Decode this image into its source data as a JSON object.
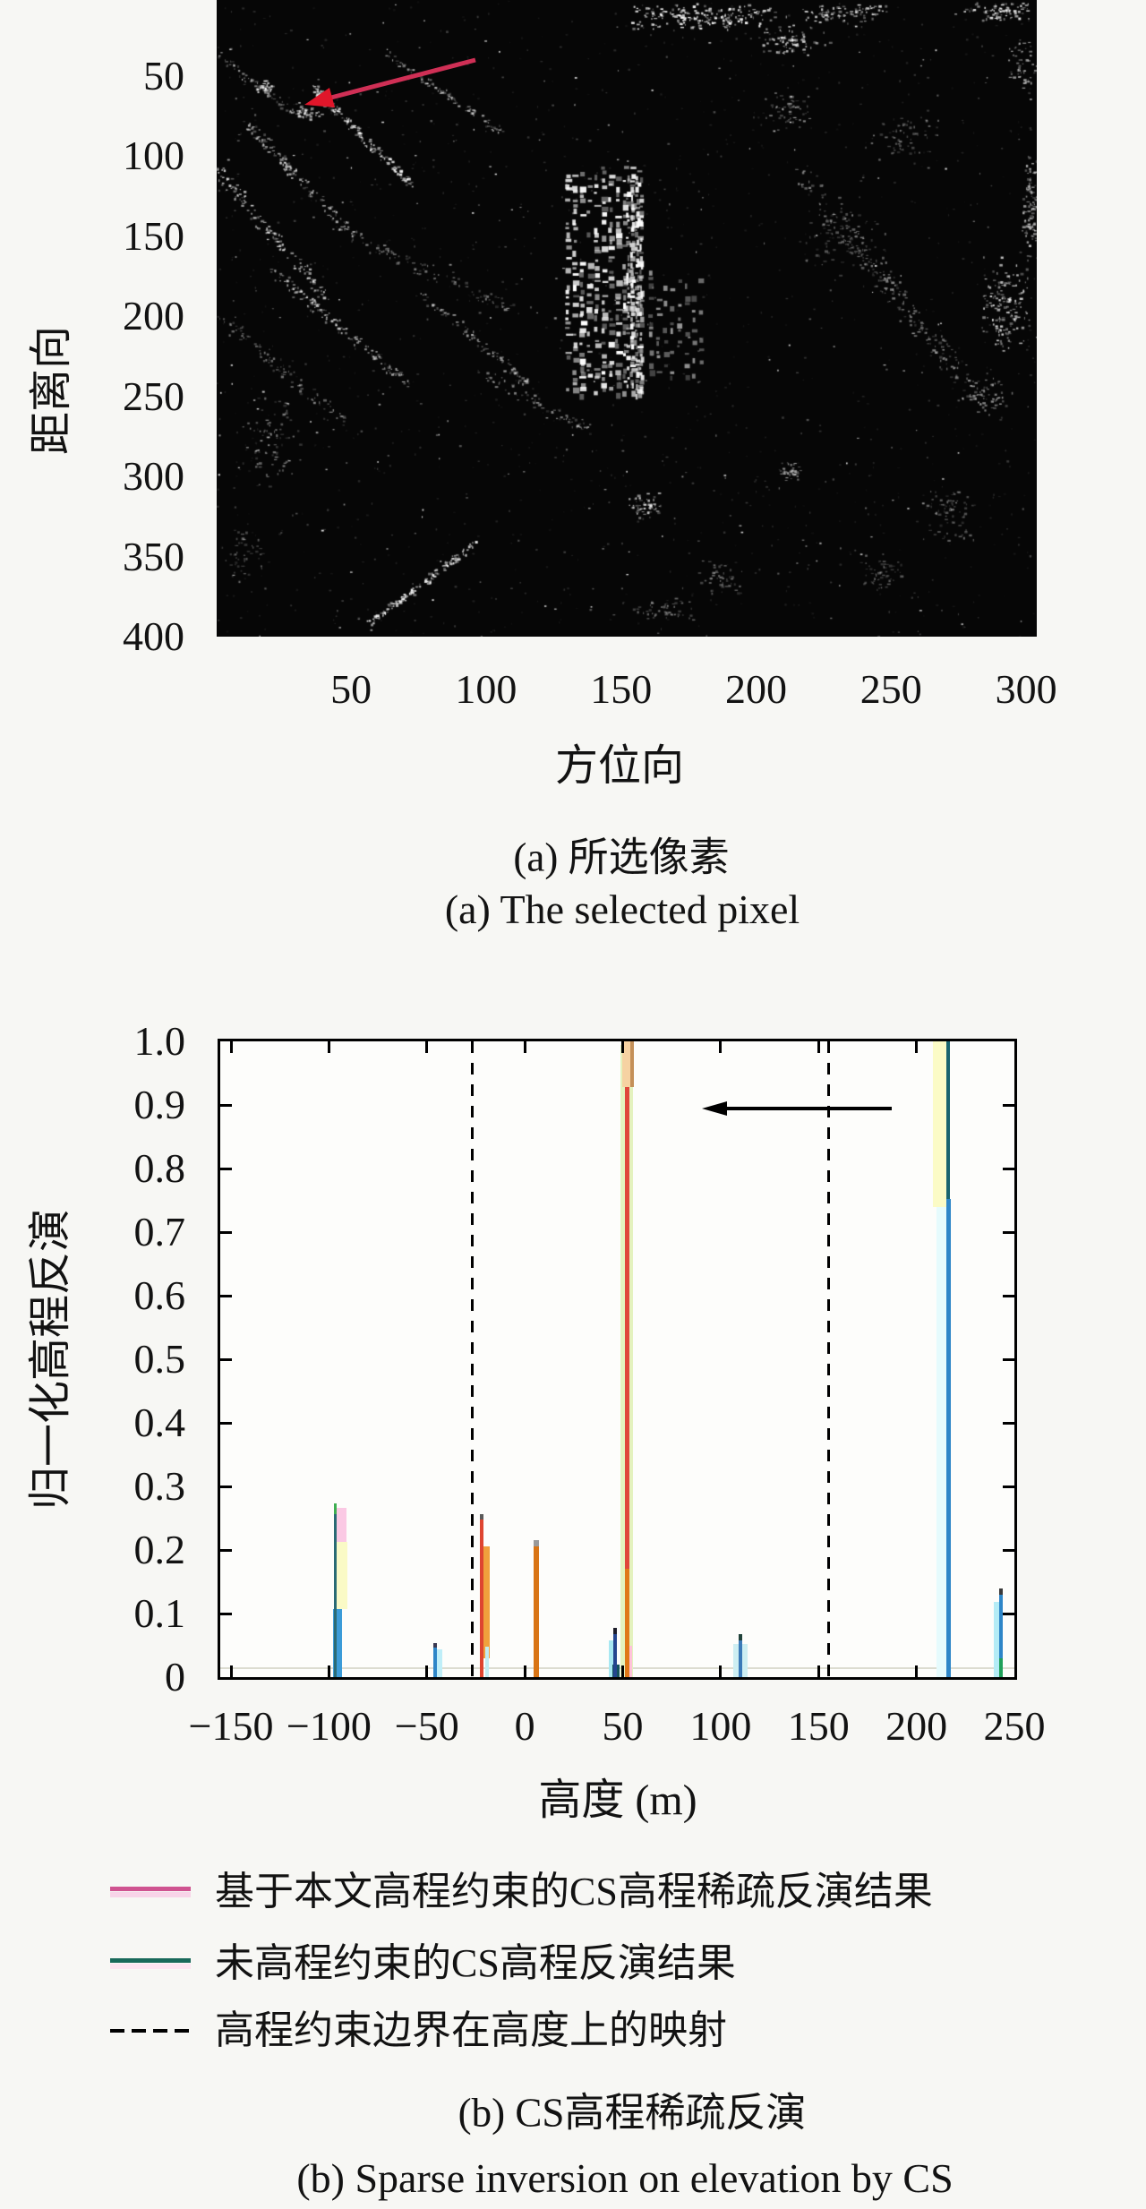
{
  "page": {
    "background": "#f7f7f4",
    "plot_background": "#fdfdfb"
  },
  "figure_a": {
    "description": "SAR amplitude image (black background, white speckle) with red arrow marking the selected pixel",
    "y_axis": {
      "title": "距离向",
      "ticks": [
        "50",
        "100",
        "150",
        "200",
        "250",
        "300",
        "350",
        "400"
      ]
    },
    "x_axis": {
      "title": "方位向",
      "ticks": [
        "50",
        "100",
        "150",
        "200",
        "250",
        "300"
      ]
    },
    "caption_zh": "(a) 所选像素",
    "caption_en": "(a) The selected pixel",
    "annotation": {
      "type": "arrow",
      "color": "#cf2f55",
      "head_color": "#e0162a"
    }
  },
  "figure_b": {
    "y_axis": {
      "title": "归一化高程反演",
      "ticks": [
        "0",
        "0.1",
        "0.2",
        "0.3",
        "0.4",
        "0.5",
        "0.6",
        "0.7",
        "0.8",
        "0.9",
        "1.0"
      ]
    },
    "x_axis": {
      "title": "高度 (m)",
      "ticks": [
        "−150",
        "−100",
        "−50",
        "0",
        "50",
        "100",
        "150",
        "200",
        "250"
      ]
    },
    "legend": [
      {
        "sample": "line",
        "color": "#cf5390",
        "glow": "#f8d4e8",
        "label": "基于本文高程约束的CS高程稀疏反演结果"
      },
      {
        "sample": "line",
        "color": "#19695a",
        "glow": "#fce4f0",
        "label": "未高程约束的CS高程反演结果"
      },
      {
        "sample": "dashed",
        "color": "#111111",
        "glow": "",
        "label": "高程约束边界在高度上的映射"
      }
    ],
    "caption_zh": "(b) CS高程稀疏反演",
    "caption_en": "(b) Sparse inversion on elevation by CS"
  },
  "chart_data": {
    "type": "line",
    "subtype": "stem-spikes",
    "title": "",
    "xlabel": "高度 (m)",
    "ylabel": "归一化高程反演",
    "xlim": [
      -155,
      250
    ],
    "ylim": [
      0,
      1
    ],
    "x_ticks": [
      -150,
      -100,
      -50,
      0,
      50,
      100,
      150,
      200,
      250
    ],
    "y_ticks": [
      0,
      0.1,
      0.2,
      0.3,
      0.4,
      0.5,
      0.6,
      0.7,
      0.8,
      0.9,
      1.0
    ],
    "grid": false,
    "legend_position": "below",
    "series": [
      {
        "name": "基于本文高程约束的CS高程稀疏反演结果",
        "color": "#cf5390",
        "points": [
          {
            "x": -22,
            "y": 0.255
          },
          {
            "x": 6,
            "y": 0.215
          },
          {
            "x": 52,
            "y": 1.0
          }
        ]
      },
      {
        "name": "未高程约束的CS高程反演结果",
        "color": "#19695a",
        "points": [
          {
            "x": -97,
            "y": 0.27
          },
          {
            "x": -46,
            "y": 0.05
          },
          {
            "x": 46,
            "y": 0.075
          },
          {
            "x": 110,
            "y": 0.065
          },
          {
            "x": 216,
            "y": 1.0
          },
          {
            "x": 243,
            "y": 0.14
          }
        ]
      }
    ],
    "boundary_lines": {
      "name": "高程约束边界在高度上的映射",
      "x": [
        -27,
        155
      ],
      "style": "dashed",
      "color": "#000000"
    },
    "annotation_arrow": {
      "y": 0.9,
      "from_x": 189,
      "to_x": 92,
      "color": "#000000"
    },
    "baseline_noise_color": "#dcdcd0",
    "spikes": [
      {
        "x": -97,
        "segments": [
          {
            "dx": -2,
            "w": 10,
            "y0": 0,
            "y1": 0.107,
            "c": "#3b9bd8"
          },
          {
            "dx": 1,
            "w": 13,
            "y0": 0.107,
            "y1": 0.212,
            "c": "#fafac6"
          },
          {
            "dx": 1,
            "w": 12,
            "y0": 0.212,
            "y1": 0.266,
            "c": "#fbc9e4"
          },
          {
            "dx": -1,
            "w": 3,
            "y0": 0,
            "y1": 0.27,
            "c": "#2a6b75"
          },
          {
            "dx": -1,
            "w": 3,
            "y0": 0.256,
            "y1": 0.273,
            "c": "#3fae52"
          }
        ]
      },
      {
        "x": -46,
        "segments": [
          {
            "dx": 2,
            "w": 6,
            "y0": 0,
            "y1": 0.043,
            "c": "#bfeef8"
          },
          {
            "dx": -2,
            "w": 4,
            "y0": 0,
            "y1": 0.05,
            "c": "#2e86c8"
          },
          {
            "dx": -2,
            "w": 4,
            "y0": 0.046,
            "y1": 0.053,
            "c": "#3a3a52"
          }
        ]
      },
      {
        "x": -22,
        "segments": [
          {
            "dx": 2,
            "w": 7,
            "y0": 0.03,
            "y1": 0.205,
            "c": "#f0a03c"
          },
          {
            "dx": 4,
            "w": 4,
            "y0": 0,
            "y1": 0.048,
            "c": "#c2ecf2"
          },
          {
            "dx": -2,
            "w": 4,
            "y0": 0,
            "y1": 0.252,
            "c": "#de4530"
          },
          {
            "dx": -2,
            "w": 4,
            "y0": 0.248,
            "y1": 0.257,
            "c": "#5a5a5a"
          }
        ]
      },
      {
        "x": 6,
        "segments": [
          {
            "dx": -3,
            "w": 6,
            "y0": 0,
            "y1": 0.211,
            "c": "#d97414"
          },
          {
            "dx": -3,
            "w": 6,
            "y0": 0.205,
            "y1": 0.216,
            "c": "#9a9a9a"
          }
        ]
      },
      {
        "x": 46,
        "segments": [
          {
            "dx": -7,
            "w": 5,
            "y0": 0,
            "y1": 0.058,
            "c": "#a8e8f2"
          },
          {
            "dx": -3,
            "w": 8,
            "y0": 0,
            "y1": 0.02,
            "c": "#14525c"
          },
          {
            "dx": -2,
            "w": 4,
            "y0": 0,
            "y1": 0.071,
            "c": "#24458f"
          },
          {
            "dx": -2,
            "w": 4,
            "y0": 0.068,
            "y1": 0.078,
            "c": "#1d1d2a"
          }
        ]
      },
      {
        "x": 52,
        "segments": [
          {
            "dx": -7,
            "w": 14,
            "y0": 0,
            "y1": 0.995,
            "c": "#e4f2be"
          },
          {
            "dx": -2,
            "w": 5,
            "y0": 0.17,
            "y1": 0.998,
            "c": "#e0453a"
          },
          {
            "dx": -2,
            "w": 5,
            "y0": 0,
            "y1": 0.17,
            "c": "#e07818"
          },
          {
            "dx": 3,
            "w": 3,
            "y0": 0,
            "y1": 0.05,
            "c": "#ffc2da"
          },
          {
            "dx": -5,
            "w": 9,
            "y0": 0.928,
            "y1": 1.0,
            "c": "#f6d2a2"
          },
          {
            "dx": 4,
            "w": 4,
            "y0": 0.928,
            "y1": 1.0,
            "c": "#c49058"
          }
        ]
      },
      {
        "x": 110,
        "segments": [
          {
            "dx": -8,
            "w": 16,
            "y0": 0,
            "y1": 0.052,
            "c": "#cdeef2"
          },
          {
            "dx": -2,
            "w": 4,
            "y0": 0,
            "y1": 0.062,
            "c": "#3a7ab8"
          },
          {
            "dx": -2,
            "w": 4,
            "y0": 0.058,
            "y1": 0.067,
            "c": "#20423a"
          }
        ]
      },
      {
        "x": 216,
        "segments": [
          {
            "dx": -17,
            "w": 15,
            "y0": 0.74,
            "y1": 1.0,
            "c": "#fbfbc6"
          },
          {
            "dx": -13,
            "w": 11,
            "y0": 0,
            "y1": 0.74,
            "c": "#e6fbfd"
          },
          {
            "dx": -2,
            "w": 4,
            "y0": 0.748,
            "y1": 1.0,
            "c": "#19646e"
          },
          {
            "dx": -2,
            "w": 5,
            "y0": 0,
            "y1": 0.752,
            "c": "#2e86c8"
          }
        ]
      },
      {
        "x": 243,
        "segments": [
          {
            "dx": -8,
            "w": 7,
            "y0": 0,
            "y1": 0.118,
            "c": "#b4ecf6"
          },
          {
            "dx": -2,
            "w": 4,
            "y0": 0,
            "y1": 0.136,
            "c": "#2e86c8"
          },
          {
            "dx": -2,
            "w": 4,
            "y0": 0,
            "y1": 0.03,
            "c": "#1fa05a"
          },
          {
            "dx": -2,
            "w": 4,
            "y0": 0.13,
            "y1": 0.14,
            "c": "#3a3a3a"
          }
        ]
      }
    ]
  }
}
